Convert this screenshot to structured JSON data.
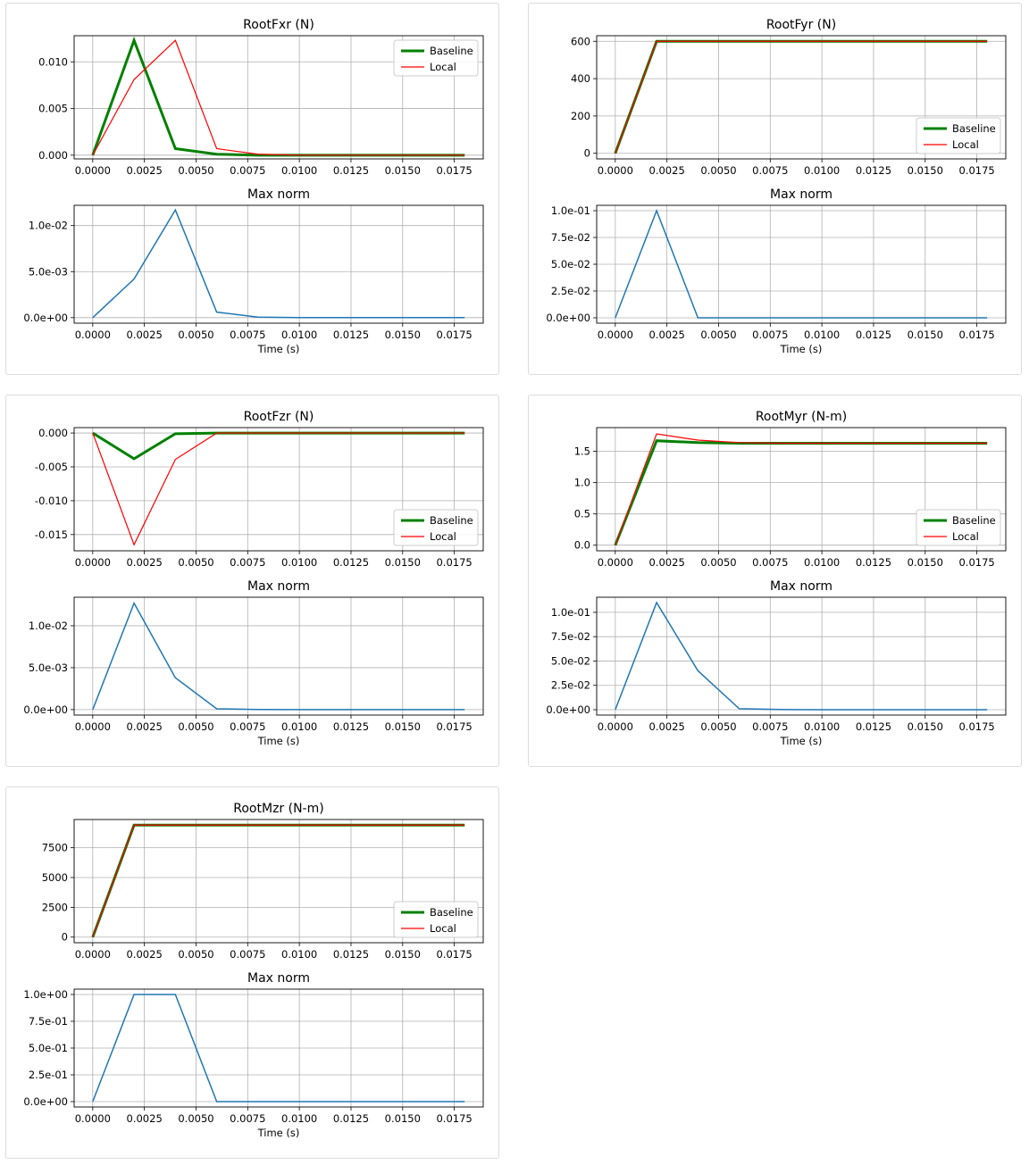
{
  "chart_data": [
    {
      "type": "line",
      "title": "RootFxr (N)",
      "x": [
        0.0,
        0.002,
        0.004,
        0.006,
        0.008,
        0.01,
        0.012,
        0.014,
        0.016,
        0.018
      ],
      "xlim": [
        -0.0009,
        0.0189
      ],
      "xticks": [
        "0.0000",
        "0.0025",
        "0.0050",
        "0.0075",
        "0.0100",
        "0.0125",
        "0.0150",
        "0.0175"
      ],
      "ylim": [
        -0.0004,
        0.0128
      ],
      "yticks": [
        "0.000",
        "0.005",
        "0.010"
      ],
      "legend_position": "upper right",
      "series": [
        {
          "name": "Baseline",
          "color": "#008000",
          "values": [
            0.0,
            0.0123,
            0.0007,
            0.0001,
            0.0,
            0.0,
            0.0,
            0.0,
            0.0,
            0.0
          ]
        },
        {
          "name": "Local",
          "color": "#ff0000",
          "values": [
            0.0,
            0.0081,
            0.0123,
            0.0007,
            0.0001,
            0.0,
            0.0,
            0.0,
            0.0,
            0.0
          ]
        }
      ],
      "norm": {
        "title": "Max norm",
        "xlabel": "Time (s)",
        "ylim": [
          -0.0006,
          0.0122
        ],
        "yticks": [
          "0.0e+00",
          "5.0e-03",
          "1.0e-02"
        ],
        "color": "#1f77b4",
        "values": [
          0.0,
          0.0042,
          0.0117,
          0.0006,
          5e-05,
          0.0,
          0.0,
          0.0,
          0.0,
          0.0
        ]
      }
    },
    {
      "type": "line",
      "title": "RootFyr (N)",
      "x": [
        0.0,
        0.002,
        0.004,
        0.006,
        0.008,
        0.01,
        0.012,
        0.014,
        0.016,
        0.018
      ],
      "xlim": [
        -0.0009,
        0.0189
      ],
      "xticks": [
        "0.0000",
        "0.0025",
        "0.0050",
        "0.0075",
        "0.0100",
        "0.0125",
        "0.0150",
        "0.0175"
      ],
      "ylim": [
        -30,
        630
      ],
      "yticks": [
        "0",
        "200",
        "400",
        "600"
      ],
      "legend_position": "lower right",
      "series": [
        {
          "name": "Baseline",
          "color": "#008000",
          "values": [
            0,
            600,
            600,
            600,
            600,
            600,
            600,
            600,
            600,
            600
          ]
        },
        {
          "name": "Local",
          "color": "#ff0000",
          "values": [
            0,
            600,
            600,
            600,
            600,
            600,
            600,
            600,
            600,
            600
          ]
        }
      ],
      "norm": {
        "title": "Max norm",
        "xlabel": "Time (s)",
        "ylim": [
          -0.005,
          0.105
        ],
        "yticks": [
          "0.0e+00",
          "2.5e-02",
          "5.0e-02",
          "7.5e-02",
          "1.0e-01"
        ],
        "color": "#1f77b4",
        "values": [
          0.0,
          0.1,
          0.0,
          0.0,
          0.0,
          0.0,
          0.0,
          0.0,
          0.0,
          0.0
        ]
      }
    },
    {
      "type": "line",
      "title": "RootFzr (N)",
      "x": [
        0.0,
        0.002,
        0.004,
        0.006,
        0.008,
        0.01,
        0.012,
        0.014,
        0.016,
        0.018
      ],
      "xlim": [
        -0.0009,
        0.0189
      ],
      "xticks": [
        "0.0000",
        "0.0025",
        "0.0050",
        "0.0075",
        "0.0100",
        "0.0125",
        "0.0150",
        "0.0175"
      ],
      "ylim": [
        -0.0174,
        0.0008
      ],
      "yticks": [
        "-0.015",
        "-0.010",
        "-0.005",
        "0.000"
      ],
      "legend_position": "lower right",
      "series": [
        {
          "name": "Baseline",
          "color": "#008000",
          "values": [
            0.0,
            -0.0038,
            -0.0001,
            0.0,
            0.0,
            0.0,
            0.0,
            0.0,
            0.0,
            0.0
          ]
        },
        {
          "name": "Local",
          "color": "#ff0000",
          "values": [
            0.0,
            -0.0165,
            -0.0039,
            0.0,
            0.0,
            0.0,
            0.0,
            0.0,
            0.0,
            0.0
          ]
        }
      ],
      "norm": {
        "title": "Max norm",
        "xlabel": "Time (s)",
        "ylim": [
          -0.00065,
          0.0134
        ],
        "yticks": [
          "0.0e+00",
          "5.0e-03",
          "1.0e-02"
        ],
        "color": "#1f77b4",
        "values": [
          0.0,
          0.0127,
          0.0038,
          0.0001,
          2e-05,
          0.0,
          0.0,
          0.0,
          0.0,
          0.0
        ]
      }
    },
    {
      "type": "line",
      "title": "RootMyr (N-m)",
      "x": [
        0.0,
        0.002,
        0.004,
        0.006,
        0.008,
        0.01,
        0.012,
        0.014,
        0.016,
        0.018
      ],
      "xlim": [
        -0.0009,
        0.0189
      ],
      "xticks": [
        "0.0000",
        "0.0025",
        "0.0050",
        "0.0075",
        "0.0100",
        "0.0125",
        "0.0150",
        "0.0175"
      ],
      "ylim": [
        -0.09,
        1.88
      ],
      "yticks": [
        "0.0",
        "0.5",
        "1.0",
        "1.5"
      ],
      "legend_position": "lower right",
      "series": [
        {
          "name": "Baseline",
          "color": "#008000",
          "values": [
            0.0,
            1.67,
            1.64,
            1.63,
            1.63,
            1.63,
            1.63,
            1.63,
            1.63,
            1.63
          ]
        },
        {
          "name": "Local",
          "color": "#ff0000",
          "values": [
            0.0,
            1.78,
            1.68,
            1.64,
            1.63,
            1.63,
            1.63,
            1.63,
            1.63,
            1.63
          ]
        }
      ],
      "norm": {
        "title": "Max norm",
        "xlabel": "Time (s)",
        "ylim": [
          -0.0055,
          0.1155
        ],
        "yticks": [
          "0.0e+00",
          "2.5e-02",
          "5.0e-02",
          "7.5e-02",
          "1.0e-01"
        ],
        "color": "#1f77b4",
        "values": [
          0.0,
          0.11,
          0.04,
          0.001,
          0.0002,
          0.0,
          0.0,
          0.0,
          0.0,
          0.0
        ]
      }
    },
    {
      "type": "line",
      "title": "RootMzr (N-m)",
      "x": [
        0.0,
        0.002,
        0.004,
        0.006,
        0.008,
        0.01,
        0.012,
        0.014,
        0.016,
        0.018
      ],
      "xlim": [
        -0.0009,
        0.0189
      ],
      "xticks": [
        "0.0000",
        "0.0025",
        "0.0050",
        "0.0075",
        "0.0100",
        "0.0125",
        "0.0150",
        "0.0175"
      ],
      "ylim": [
        -470,
        9870
      ],
      "yticks": [
        "0",
        "2500",
        "5000",
        "7500"
      ],
      "legend_position": "lower right",
      "series": [
        {
          "name": "Baseline",
          "color": "#008000",
          "values": [
            0,
            9400,
            9400,
            9400,
            9400,
            9400,
            9400,
            9400,
            9400,
            9400
          ]
        },
        {
          "name": "Local",
          "color": "#ff0000",
          "values": [
            0,
            9400,
            9400,
            9400,
            9400,
            9400,
            9400,
            9400,
            9400,
            9400
          ]
        }
      ],
      "norm": {
        "title": "Max norm",
        "xlabel": "Time (s)",
        "ylim": [
          -0.05,
          1.05
        ],
        "yticks": [
          "0.0e+00",
          "2.5e-01",
          "5.0e-01",
          "7.5e-01",
          "1.0e+00"
        ],
        "color": "#1f77b4",
        "values": [
          0.0,
          1.0,
          1.0,
          0.0,
          0.0,
          0.0,
          0.0,
          0.0,
          0.0,
          0.0
        ]
      }
    }
  ]
}
